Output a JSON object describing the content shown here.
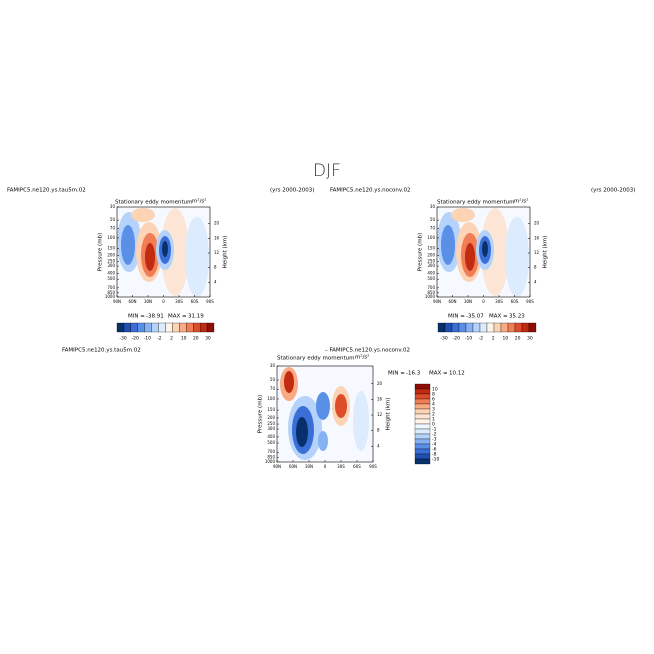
{
  "title": "DJF",
  "panels": [
    {
      "case": "FAMIPC5.ne120.ys.tau5m.02",
      "years": "(yrs 2000-2003)",
      "title": "Stationary eddy momentum",
      "units": "m²/s²",
      "ylabel": "Pressure (mb)",
      "y2label": "Height (km)",
      "pressure_ticks": [
        30,
        50,
        70,
        100,
        150,
        200,
        250,
        300,
        400,
        500,
        700,
        850,
        1000
      ],
      "height_ticks": [
        4,
        8,
        12,
        16,
        20
      ],
      "lat_ticks": [
        "90N",
        "60N",
        "30N",
        "0",
        "30S",
        "60S",
        "90S"
      ],
      "min_label": "MIN =",
      "min": -38.91,
      "max_label": "MAX =",
      "max": 31.19,
      "colorbar_labels": [
        -30,
        -20,
        -10,
        -2,
        2,
        10,
        20,
        30
      ],
      "colorbar_colors": [
        "#08306b",
        "#1f4fb0",
        "#3a6fd8",
        "#5a8fe8",
        "#86b2f2",
        "#b4d2fa",
        "#dcebfd",
        "#fff4e8",
        "#fcd3b5",
        "#f9ab84",
        "#f07d55",
        "#de4d2a",
        "#c02b12",
        "#8f0d05"
      ]
    },
    {
      "case": "FAMIPC5.ne120.ys.noconv.02",
      "years": "(yrs 2000-2003)",
      "title": "Stationary eddy momentum",
      "units": "m²/s²",
      "ylabel": "Pressure (mb)",
      "y2label": "Height (km)",
      "pressure_ticks": [
        30,
        50,
        70,
        100,
        150,
        200,
        250,
        300,
        400,
        500,
        700,
        850,
        1000
      ],
      "height_ticks": [
        4,
        8,
        12,
        16,
        20
      ],
      "lat_ticks": [
        "90N",
        "60N",
        "30N",
        "0",
        "30S",
        "60S",
        "90S"
      ],
      "min_label": "MIN =",
      "min": -35.07,
      "max_label": "MAX =",
      "max": 35.23,
      "colorbar_labels": [
        -30,
        -20,
        -10,
        -2,
        2,
        10,
        20,
        30
      ],
      "colorbar_colors": [
        "#08306b",
        "#1f4fb0",
        "#3a6fd8",
        "#5a8fe8",
        "#86b2f2",
        "#b4d2fa",
        "#dcebfd",
        "#fff4e8",
        "#fcd3b5",
        "#f9ab84",
        "#f07d55",
        "#de4d2a",
        "#c02b12",
        "#8f0d05"
      ]
    }
  ],
  "diff": {
    "case": "FAMIPC5.ne120.ys.tau5m.02",
    "minus": "– FAMIPC5.ne120.ys.noconv.02",
    "title": "Stationary eddy momentum",
    "units": "m²/s²",
    "ylabel": "Pressure (mb)",
    "y2label": "Height (km)",
    "pressure_ticks": [
      30,
      50,
      70,
      100,
      150,
      200,
      250,
      300,
      400,
      500,
      700,
      850,
      1000
    ],
    "height_ticks": [
      4,
      8,
      12,
      16,
      20
    ],
    "lat_ticks": [
      "90N",
      "60N",
      "30N",
      "0",
      "30S",
      "60S",
      "90S"
    ],
    "min_label": "MIN =",
    "min": -16.3,
    "max_label": "MAX =",
    "max": 10.12,
    "colorbar_labels": [
      10,
      8,
      6,
      4,
      3,
      2,
      1,
      0,
      -1,
      -2,
      -3,
      -4,
      -6,
      -8,
      -10
    ],
    "colorbar_colors": [
      "#8f0d05",
      "#c02b12",
      "#de4d2a",
      "#f07d55",
      "#f9ab84",
      "#fcd3b5",
      "#fde6d6",
      "#fff4e8",
      "#eef6fe",
      "#dcebfd",
      "#b4d2fa",
      "#86b2f2",
      "#5a8fe8",
      "#3a6fd8",
      "#1f4fb0",
      "#08306b"
    ]
  }
}
